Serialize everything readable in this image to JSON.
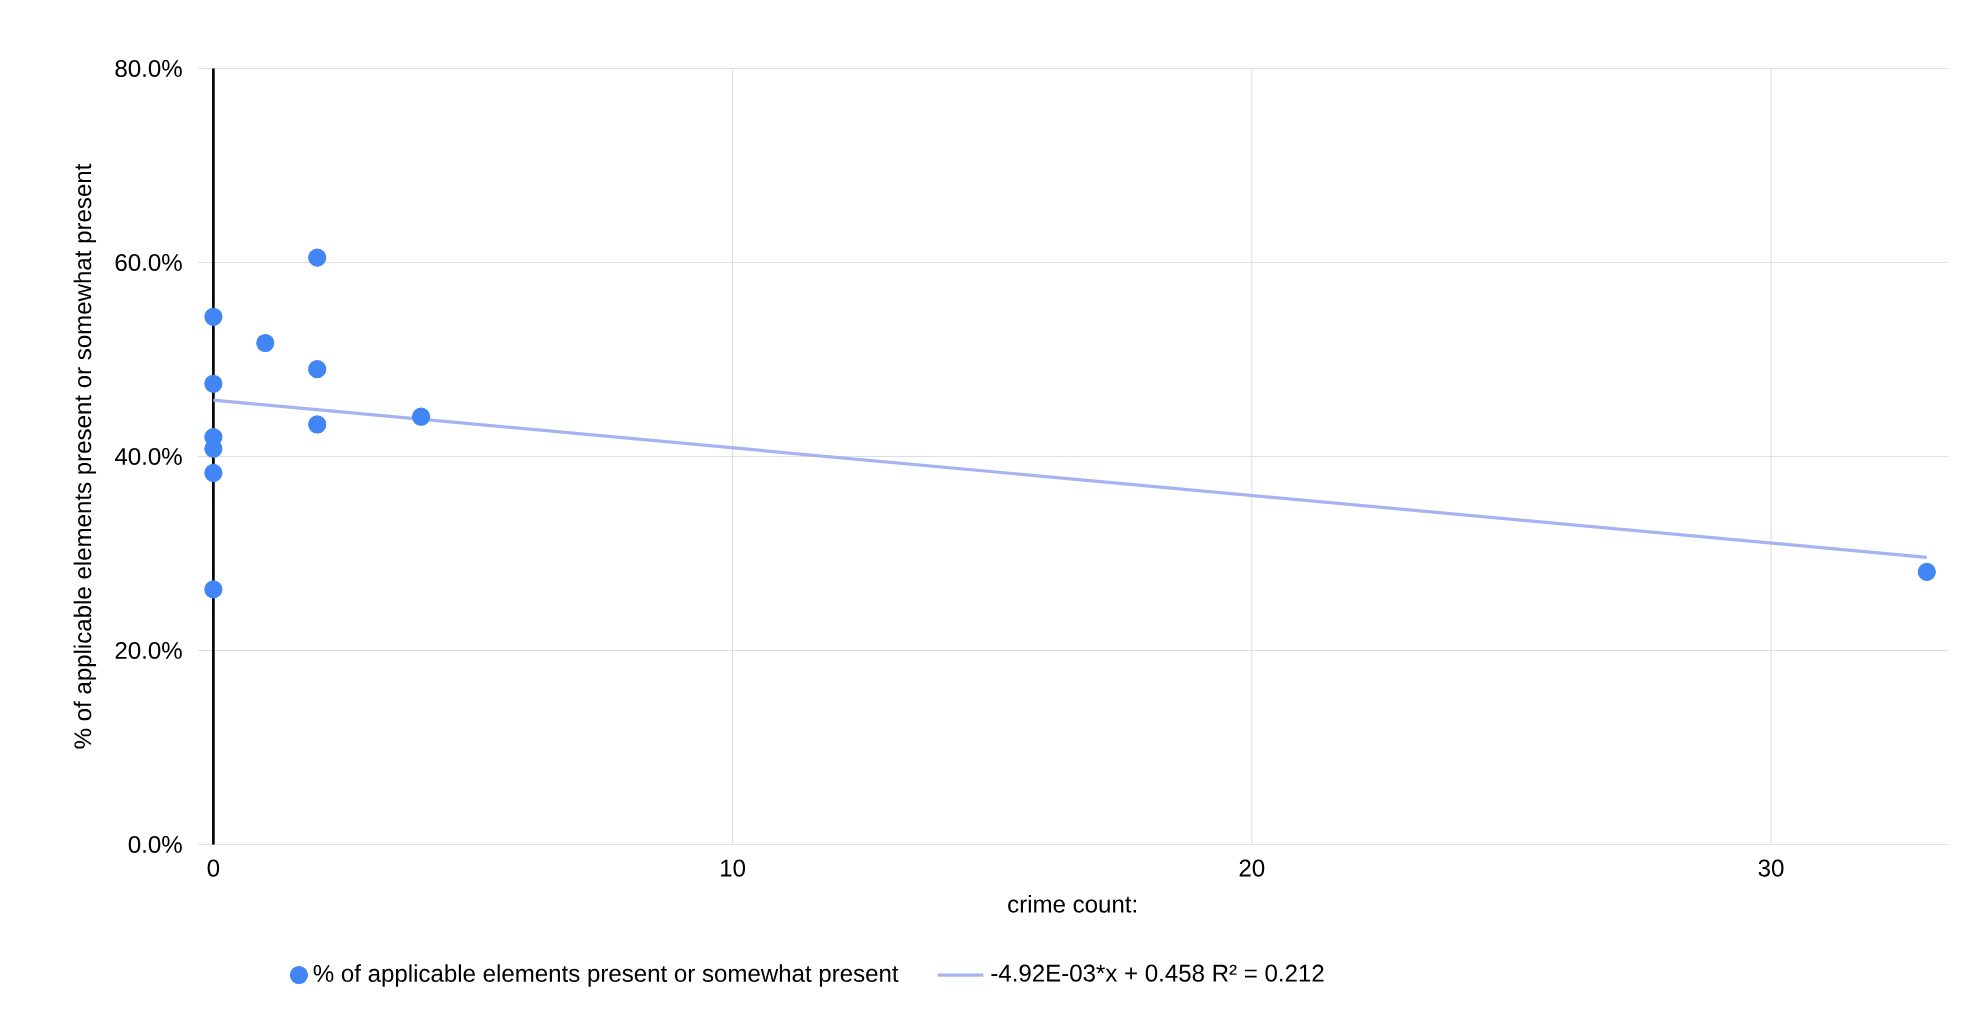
{
  "chart_data": {
    "type": "scatter",
    "xlabel": "crime count:",
    "ylabel": "% of applicable elements present or somewhat present",
    "xlim": [
      -0.3,
      33.4
    ],
    "ylim": [
      0,
      80
    ],
    "xticks": [
      0,
      10,
      20,
      30
    ],
    "yticks": [
      {
        "value": 0,
        "label": "0.0%"
      },
      {
        "value": 20,
        "label": "20.0%"
      },
      {
        "value": 40,
        "label": "40.0%"
      },
      {
        "value": 60,
        "label": "60.0%"
      },
      {
        "value": 80,
        "label": "80.0%"
      }
    ],
    "grid": true,
    "legend": "bottom",
    "series": [
      {
        "name": "% of applicable elements present or somewhat present",
        "color": "#4285f4",
        "marker": "circle",
        "x": [
          0,
          0,
          0,
          0,
          0,
          0,
          1,
          2,
          2,
          2,
          4,
          33
        ],
        "values": [
          54.4,
          47.5,
          42.0,
          40.8,
          38.3,
          26.3,
          51.7,
          60.5,
          49.0,
          43.3,
          44.1,
          28.1
        ]
      },
      {
        "name": "-4.92E-03*x + 0.458 R² = 0.212",
        "type": "line",
        "marker": "none",
        "color": "#a4b3f2",
        "x": [
          0,
          33
        ],
        "values": [
          45.8,
          29.6
        ]
      }
    ]
  }
}
